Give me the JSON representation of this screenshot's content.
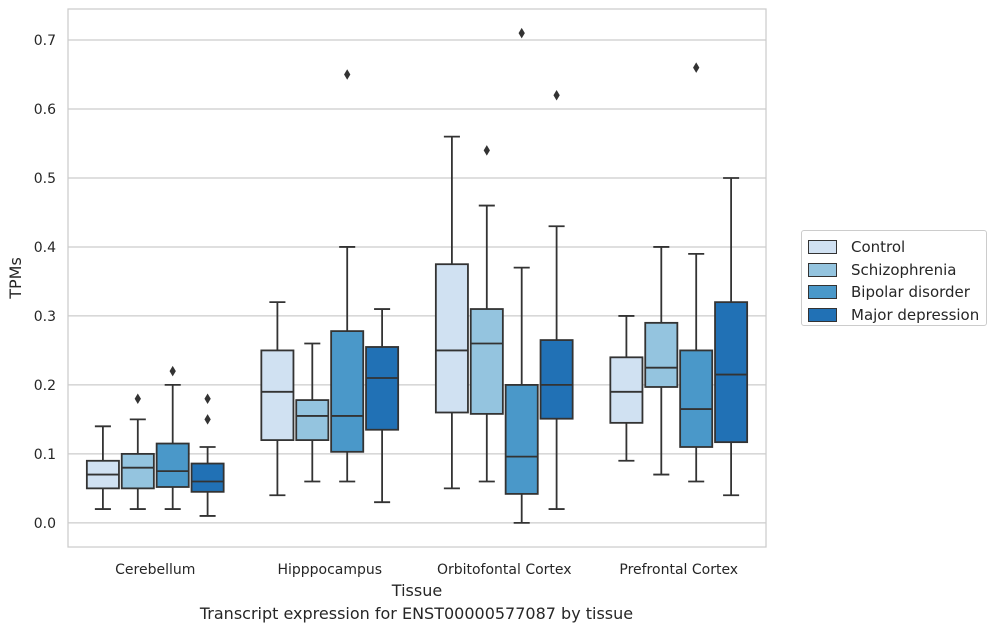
{
  "chart_data": {
    "type": "box",
    "xlabel": "Tissue",
    "ylabel": "TPMs",
    "ylim": [
      -0.035,
      0.745
    ],
    "yticks": [
      0.0,
      0.1,
      0.2,
      0.3,
      0.4,
      0.5,
      0.6,
      0.7
    ],
    "ytick_labels": [
      "0.0",
      "0.1",
      "0.2",
      "0.3",
      "0.4",
      "0.5",
      "0.6",
      "0.7"
    ],
    "grid": true,
    "legend_position": "right",
    "categories": [
      "Cerebellum",
      "Hipppocampus",
      "Orbitofontal Cortex",
      "Prefrontal Cortex"
    ],
    "series": [
      {
        "name": "Control",
        "color": "#d0e1f2",
        "boxes": [
          {
            "whislo": 0.02,
            "q1": 0.05,
            "med": 0.07,
            "q3": 0.09,
            "whishi": 0.14,
            "fliers": []
          },
          {
            "whislo": 0.04,
            "q1": 0.12,
            "med": 0.19,
            "q3": 0.25,
            "whishi": 0.32,
            "fliers": []
          },
          {
            "whislo": 0.05,
            "q1": 0.16,
            "med": 0.25,
            "q3": 0.375,
            "whishi": 0.56,
            "fliers": []
          },
          {
            "whislo": 0.09,
            "q1": 0.145,
            "med": 0.19,
            "q3": 0.24,
            "whishi": 0.3,
            "fliers": []
          }
        ]
      },
      {
        "name": "Schizophrenia",
        "color": "#94c4df",
        "boxes": [
          {
            "whislo": 0.02,
            "q1": 0.05,
            "med": 0.08,
            "q3": 0.1,
            "whishi": 0.15,
            "fliers": [
              0.18
            ]
          },
          {
            "whislo": 0.06,
            "q1": 0.12,
            "med": 0.155,
            "q3": 0.178,
            "whishi": 0.26,
            "fliers": []
          },
          {
            "whislo": 0.06,
            "q1": 0.158,
            "med": 0.26,
            "q3": 0.31,
            "whishi": 0.46,
            "fliers": [
              0.54
            ]
          },
          {
            "whislo": 0.07,
            "q1": 0.197,
            "med": 0.225,
            "q3": 0.29,
            "whishi": 0.4,
            "fliers": []
          }
        ]
      },
      {
        "name": "Bipolar disorder",
        "color": "#4a98c9",
        "boxes": [
          {
            "whislo": 0.02,
            "q1": 0.052,
            "med": 0.075,
            "q3": 0.115,
            "whishi": 0.2,
            "fliers": [
              0.22
            ]
          },
          {
            "whislo": 0.06,
            "q1": 0.103,
            "med": 0.155,
            "q3": 0.278,
            "whishi": 0.4,
            "fliers": [
              0.65
            ]
          },
          {
            "whislo": 0.0,
            "q1": 0.042,
            "med": 0.096,
            "q3": 0.2,
            "whishi": 0.37,
            "fliers": [
              0.71
            ]
          },
          {
            "whislo": 0.06,
            "q1": 0.11,
            "med": 0.165,
            "q3": 0.25,
            "whishi": 0.39,
            "fliers": [
              0.66
            ]
          }
        ]
      },
      {
        "name": "Major depression",
        "color": "#2171b5",
        "boxes": [
          {
            "whislo": 0.01,
            "q1": 0.045,
            "med": 0.06,
            "q3": 0.086,
            "whishi": 0.11,
            "fliers": [
              0.15,
              0.18
            ]
          },
          {
            "whislo": 0.03,
            "q1": 0.135,
            "med": 0.21,
            "q3": 0.255,
            "whishi": 0.31,
            "fliers": []
          },
          {
            "whislo": 0.02,
            "q1": 0.151,
            "med": 0.2,
            "q3": 0.265,
            "whishi": 0.43,
            "fliers": [
              0.62
            ]
          },
          {
            "whislo": 0.04,
            "q1": 0.117,
            "med": 0.215,
            "q3": 0.32,
            "whishi": 0.5,
            "fliers": []
          }
        ]
      }
    ]
  },
  "caption": "Transcript expression for ENST00000577087 by tissue"
}
